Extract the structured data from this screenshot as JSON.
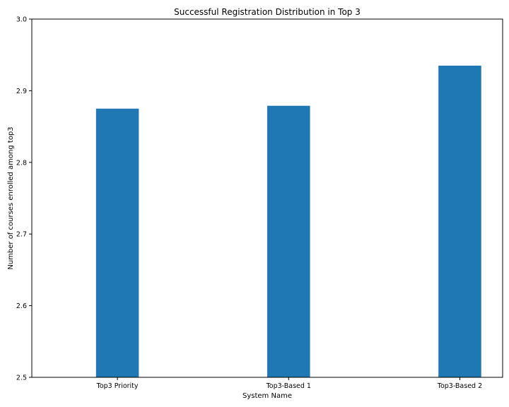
{
  "chart_data": {
    "type": "bar",
    "title": "Successful Registration Distribution in Top 3",
    "xlabel": "System Name",
    "ylabel": "Number of courses enrolled among top3",
    "categories": [
      "Top3 Priority",
      "Top3-Based 1",
      "Top3-Based 2"
    ],
    "values": [
      2.875,
      2.879,
      2.935
    ],
    "ylim": [
      2.5,
      3.0
    ],
    "yticks": [
      "2.5",
      "2.6",
      "2.7",
      "2.8",
      "2.9",
      "3.0"
    ],
    "bar_color": "#1f77b4",
    "grid": false,
    "legend": "none"
  }
}
